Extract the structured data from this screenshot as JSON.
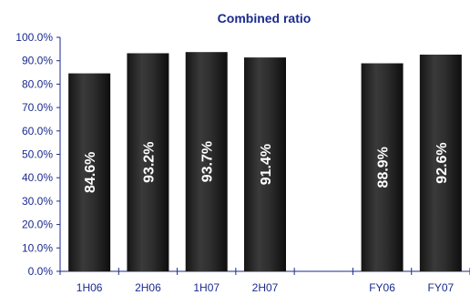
{
  "chart_data": {
    "type": "bar",
    "title": "Combined ratio",
    "xlabel": "",
    "ylabel": "",
    "categories": [
      "1H06",
      "2H06",
      "1H07",
      "2H07",
      "",
      "FY06",
      "FY07"
    ],
    "values": [
      84.6,
      93.2,
      93.7,
      91.4,
      null,
      88.9,
      92.6
    ],
    "data_labels": [
      "84.6%",
      "93.2%",
      "93.7%",
      "91.4%",
      "",
      "88.9%",
      "92.6%"
    ],
    "ylim": [
      0,
      100
    ],
    "ytick_labels": [
      "0.0%",
      "10.0%",
      "20.0%",
      "30.0%",
      "40.0%",
      "50.0%",
      "60.0%",
      "70.0%",
      "80.0%",
      "90.0%",
      "100.0%"
    ],
    "grid": false,
    "legend": "none",
    "bar_color": "#2a2a2a",
    "axis_color": "#1a2a8f"
  }
}
